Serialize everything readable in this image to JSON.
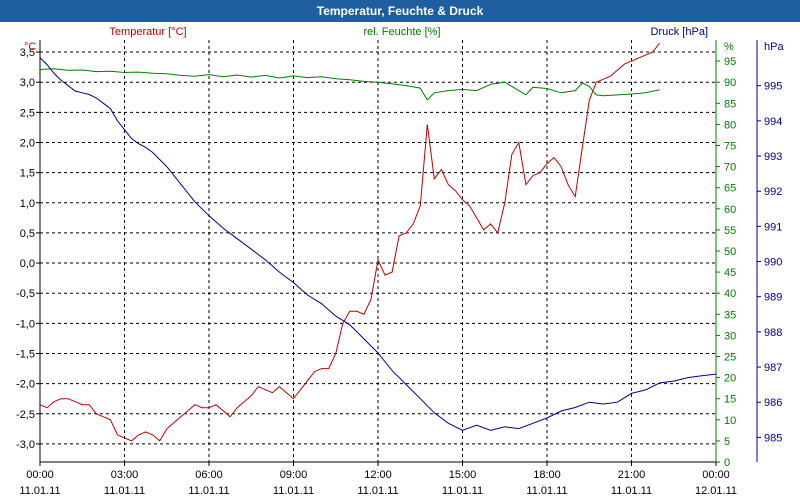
{
  "window": {
    "title": "Temperatur, Feuchte & Druck"
  },
  "chart_data": {
    "type": "line",
    "title": "Temperatur, Feuchte & Druck",
    "colors": {
      "temperature": "#c00000",
      "humidity": "#008000",
      "pressure": "#00008b",
      "grid": "#000000"
    },
    "axes": {
      "temperature": {
        "unit": "°C",
        "range": [
          -3.3,
          3.7
        ],
        "ticks": [
          "3,5",
          "3,0",
          "2,5",
          "2,0",
          "1,5",
          "1,0",
          "0,5",
          "0,0",
          "-0,5",
          "-1,0",
          "-1,5",
          "-2,0",
          "-2,5",
          "-3,0"
        ],
        "tick_values": [
          3.5,
          3.0,
          2.5,
          2.0,
          1.5,
          1.0,
          0.5,
          0.0,
          -0.5,
          -1.0,
          -1.5,
          -2.0,
          -2.5,
          -3.0
        ]
      },
      "humidity": {
        "unit": "%",
        "range": [
          0,
          100
        ],
        "ticks": [
          "95",
          "90",
          "85",
          "80",
          "75",
          "70",
          "65",
          "60",
          "55",
          "50",
          "45",
          "40",
          "35",
          "30",
          "25",
          "20",
          "15",
          "10",
          "5",
          "0"
        ],
        "tick_values": [
          95,
          90,
          85,
          80,
          75,
          70,
          65,
          60,
          55,
          50,
          45,
          40,
          35,
          30,
          25,
          20,
          15,
          10,
          5,
          0
        ]
      },
      "pressure": {
        "unit": "hPa",
        "range": [
          984.3,
          996.3
        ],
        "ticks": [
          "995",
          "994",
          "993",
          "992",
          "991",
          "990",
          "989",
          "988",
          "987",
          "986",
          "985"
        ],
        "tick_values": [
          995,
          994,
          993,
          992,
          991,
          990,
          989,
          988,
          987,
          986,
          985
        ]
      }
    },
    "x_ticks": [
      {
        "time": "00:00",
        "date": "11.01.11"
      },
      {
        "time": "03:00",
        "date": "11.01.11"
      },
      {
        "time": "06:00",
        "date": "11.01.11"
      },
      {
        "time": "09:00",
        "date": "11.01.11"
      },
      {
        "time": "12:00",
        "date": "11.01.11"
      },
      {
        "time": "15:00",
        "date": "11.01.11"
      },
      {
        "time": "18:00",
        "date": "11.01.11"
      },
      {
        "time": "21:00",
        "date": "11.01.11"
      },
      {
        "time": "00:00",
        "date": "12.01.11"
      }
    ],
    "x_range_hours": [
      0,
      24
    ],
    "series": [
      {
        "name": "Temperatur [°C]",
        "key": "temperature",
        "axis": "temperature",
        "points": [
          [
            0,
            -2.35
          ],
          [
            0.25,
            -2.4
          ],
          [
            0.5,
            -2.3
          ],
          [
            0.75,
            -2.25
          ],
          [
            1.0,
            -2.25
          ],
          [
            1.25,
            -2.3
          ],
          [
            1.5,
            -2.35
          ],
          [
            1.75,
            -2.35
          ],
          [
            2.0,
            -2.5
          ],
          [
            2.25,
            -2.55
          ],
          [
            2.5,
            -2.6
          ],
          [
            2.75,
            -2.85
          ],
          [
            3.0,
            -2.9
          ],
          [
            3.25,
            -2.95
          ],
          [
            3.5,
            -2.85
          ],
          [
            3.75,
            -2.8
          ],
          [
            4.0,
            -2.85
          ],
          [
            4.25,
            -2.95
          ],
          [
            4.5,
            -2.75
          ],
          [
            4.75,
            -2.65
          ],
          [
            5.0,
            -2.55
          ],
          [
            5.25,
            -2.45
          ],
          [
            5.5,
            -2.35
          ],
          [
            5.75,
            -2.4
          ],
          [
            6.0,
            -2.4
          ],
          [
            6.25,
            -2.35
          ],
          [
            6.5,
            -2.45
          ],
          [
            6.75,
            -2.55
          ],
          [
            7.0,
            -2.4
          ],
          [
            7.25,
            -2.3
          ],
          [
            7.5,
            -2.2
          ],
          [
            7.75,
            -2.05
          ],
          [
            8.0,
            -2.1
          ],
          [
            8.25,
            -2.15
          ],
          [
            8.5,
            -2.05
          ],
          [
            8.75,
            -2.15
          ],
          [
            9.0,
            -2.25
          ],
          [
            9.25,
            -2.1
          ],
          [
            9.5,
            -1.95
          ],
          [
            9.75,
            -1.8
          ],
          [
            10.0,
            -1.75
          ],
          [
            10.25,
            -1.75
          ],
          [
            10.5,
            -1.5
          ],
          [
            10.75,
            -1.0
          ],
          [
            11.0,
            -0.8
          ],
          [
            11.25,
            -0.8
          ],
          [
            11.5,
            -0.85
          ],
          [
            11.75,
            -0.6
          ],
          [
            12.0,
            0.05
          ],
          [
            12.25,
            -0.2
          ],
          [
            12.5,
            -0.15
          ],
          [
            12.75,
            0.45
          ],
          [
            13.0,
            0.5
          ],
          [
            13.25,
            0.65
          ],
          [
            13.5,
            0.95
          ],
          [
            13.75,
            2.3
          ],
          [
            14.0,
            1.4
          ],
          [
            14.25,
            1.55
          ],
          [
            14.5,
            1.3
          ],
          [
            14.75,
            1.2
          ],
          [
            15.0,
            1.05
          ],
          [
            15.25,
            0.95
          ],
          [
            15.5,
            0.75
          ],
          [
            15.75,
            0.55
          ],
          [
            16.0,
            0.65
          ],
          [
            16.25,
            0.5
          ],
          [
            16.5,
            1.0
          ],
          [
            16.75,
            1.8
          ],
          [
            17.0,
            2.0
          ],
          [
            17.25,
            1.3
          ],
          [
            17.5,
            1.45
          ],
          [
            17.75,
            1.5
          ],
          [
            18.0,
            1.65
          ],
          [
            18.25,
            1.75
          ],
          [
            18.5,
            1.6
          ],
          [
            18.75,
            1.3
          ],
          [
            19.0,
            1.1
          ],
          [
            19.25,
            1.9
          ],
          [
            19.5,
            2.7
          ],
          [
            19.75,
            3.0
          ],
          [
            20.0,
            3.05
          ],
          [
            20.25,
            3.1
          ],
          [
            20.5,
            3.2
          ],
          [
            20.75,
            3.3
          ],
          [
            21.0,
            3.35
          ],
          [
            21.25,
            3.4
          ],
          [
            21.5,
            3.45
          ],
          [
            21.75,
            3.5
          ],
          [
            22.0,
            3.65
          ]
        ]
      },
      {
        "name": "rel. Feuchte [%]",
        "key": "humidity",
        "axis": "humidity",
        "points": [
          [
            0,
            93
          ],
          [
            0.5,
            93.2
          ],
          [
            1.0,
            92.8
          ],
          [
            1.5,
            92.9
          ],
          [
            2.0,
            92.5
          ],
          [
            2.5,
            92.6
          ],
          [
            3.0,
            92.3
          ],
          [
            3.5,
            92.4
          ],
          [
            4.0,
            92.1
          ],
          [
            4.5,
            92.0
          ],
          [
            5.0,
            91.6
          ],
          [
            5.5,
            91.4
          ],
          [
            6.0,
            91.8
          ],
          [
            6.5,
            91.3
          ],
          [
            7.0,
            91.7
          ],
          [
            7.5,
            91.2
          ],
          [
            8.0,
            91.6
          ],
          [
            8.5,
            91.0
          ],
          [
            9.0,
            91.5
          ],
          [
            9.5,
            91.1
          ],
          [
            10.0,
            91.3
          ],
          [
            10.5,
            90.8
          ],
          [
            11.0,
            90.6
          ],
          [
            11.5,
            90.2
          ],
          [
            12.0,
            90.0
          ],
          [
            12.5,
            89.6
          ],
          [
            13.0,
            89.2
          ],
          [
            13.5,
            88.6
          ],
          [
            13.75,
            85.8
          ],
          [
            14.0,
            87.5
          ],
          [
            14.5,
            88.0
          ],
          [
            15.0,
            88.3
          ],
          [
            15.5,
            88.0
          ],
          [
            16.0,
            89.5
          ],
          [
            16.5,
            90.0
          ],
          [
            17.0,
            88.0
          ],
          [
            17.25,
            87.0
          ],
          [
            17.5,
            88.8
          ],
          [
            18.0,
            88.5
          ],
          [
            18.5,
            87.5
          ],
          [
            19.0,
            88.0
          ],
          [
            19.25,
            89.8
          ],
          [
            19.5,
            89.0
          ],
          [
            19.75,
            87.0
          ],
          [
            20.0,
            86.8
          ],
          [
            20.5,
            87.0
          ],
          [
            21.0,
            87.2
          ],
          [
            21.5,
            87.5
          ],
          [
            22.0,
            88.2
          ]
        ]
      },
      {
        "name": "Druck [hPa]",
        "key": "pressure",
        "axis": "pressure",
        "points": [
          [
            0,
            995.8
          ],
          [
            0.25,
            995.6
          ],
          [
            0.5,
            995.35
          ],
          [
            0.75,
            995.15
          ],
          [
            1.0,
            995.0
          ],
          [
            1.25,
            994.85
          ],
          [
            1.5,
            994.8
          ],
          [
            1.75,
            994.75
          ],
          [
            2.0,
            994.65
          ],
          [
            2.25,
            994.5
          ],
          [
            2.5,
            994.35
          ],
          [
            2.75,
            994.0
          ],
          [
            3.0,
            993.75
          ],
          [
            3.25,
            993.5
          ],
          [
            3.5,
            993.35
          ],
          [
            3.75,
            993.25
          ],
          [
            4.0,
            993.1
          ],
          [
            4.5,
            992.7
          ],
          [
            5.0,
            992.2
          ],
          [
            5.5,
            991.7
          ],
          [
            6.0,
            991.3
          ],
          [
            6.5,
            990.95
          ],
          [
            7.0,
            990.65
          ],
          [
            7.5,
            990.35
          ],
          [
            8.0,
            990.05
          ],
          [
            8.5,
            989.7
          ],
          [
            9.0,
            989.4
          ],
          [
            9.5,
            989.05
          ],
          [
            10.0,
            988.8
          ],
          [
            10.5,
            988.45
          ],
          [
            11.0,
            988.2
          ],
          [
            11.5,
            987.8
          ],
          [
            12.0,
            987.4
          ],
          [
            12.5,
            986.9
          ],
          [
            13.0,
            986.5
          ],
          [
            13.5,
            986.1
          ],
          [
            14.0,
            985.7
          ],
          [
            14.5,
            985.4
          ],
          [
            15.0,
            985.2
          ],
          [
            15.5,
            985.35
          ],
          [
            16.0,
            985.2
          ],
          [
            16.5,
            985.3
          ],
          [
            17.0,
            985.25
          ],
          [
            17.5,
            985.4
          ],
          [
            18.0,
            985.55
          ],
          [
            18.5,
            985.75
          ],
          [
            19.0,
            985.85
          ],
          [
            19.5,
            986.0
          ],
          [
            20.0,
            985.95
          ],
          [
            20.5,
            986.0
          ],
          [
            21.0,
            986.25
          ],
          [
            21.5,
            986.35
          ],
          [
            22.0,
            986.55
          ],
          [
            22.5,
            986.6
          ],
          [
            23.0,
            986.7
          ],
          [
            23.5,
            986.75
          ],
          [
            24.0,
            986.8
          ]
        ]
      }
    ],
    "legend": [
      {
        "label": "Temperatur [°C]",
        "key": "temperature"
      },
      {
        "label": "rel. Feuchte [%]",
        "key": "humidity"
      },
      {
        "label": "Druck [hPa]",
        "key": "pressure"
      }
    ]
  }
}
